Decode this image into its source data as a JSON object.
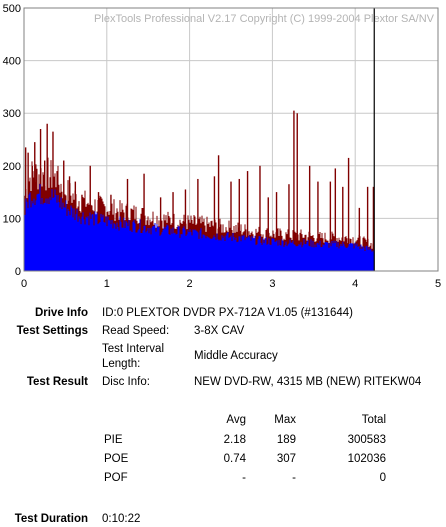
{
  "chart_data": {
    "type": "bar",
    "watermark": "PlexTools Professional V2.17 Copyright (C) 1999-2004 Plextor SA/NV",
    "x_ticks": [
      "0",
      "1",
      "2",
      "3",
      "4",
      "5"
    ],
    "y_ticks": [
      "0",
      "100",
      "200",
      "300",
      "400",
      "500"
    ],
    "xlim": [
      0,
      5
    ],
    "ylim": [
      0,
      500
    ],
    "end_marker_x": 4.23,
    "grid": true,
    "series": [
      {
        "color": "#0000ff",
        "values": [
          [
            0,
            110
          ],
          [
            0.05,
            140
          ],
          [
            0.1,
            150
          ],
          [
            0.2,
            150
          ],
          [
            0.3,
            150
          ],
          [
            0.4,
            140
          ],
          [
            0.5,
            125
          ],
          [
            0.6,
            115
          ],
          [
            0.7,
            108
          ],
          [
            0.8,
            105
          ],
          [
            0.9,
            100
          ],
          [
            1.0,
            98
          ],
          [
            1.2,
            92
          ],
          [
            1.4,
            88
          ],
          [
            1.6,
            82
          ],
          [
            1.8,
            78
          ],
          [
            2.0,
            75
          ],
          [
            2.2,
            72
          ],
          [
            2.4,
            68
          ],
          [
            2.6,
            65
          ],
          [
            2.8,
            60
          ],
          [
            3.0,
            58
          ],
          [
            3.2,
            55
          ],
          [
            3.4,
            55
          ],
          [
            3.6,
            52
          ],
          [
            3.8,
            52
          ],
          [
            4.0,
            50
          ],
          [
            4.23,
            40
          ]
        ]
      },
      {
        "color": "#800000",
        "spikes": [
          [
            0.02,
            235
          ],
          [
            0.05,
            225
          ],
          [
            0.1,
            200
          ],
          [
            0.13,
            245
          ],
          [
            0.2,
            270
          ],
          [
            0.25,
            210
          ],
          [
            0.28,
            280
          ],
          [
            0.35,
            265
          ],
          [
            0.4,
            190
          ],
          [
            0.48,
            210
          ],
          [
            0.55,
            180
          ],
          [
            0.62,
            170
          ],
          [
            0.7,
            145
          ],
          [
            0.8,
            200
          ],
          [
            0.9,
            150
          ],
          [
            1.05,
            145
          ],
          [
            1.25,
            175
          ],
          [
            1.45,
            185
          ],
          [
            1.65,
            140
          ],
          [
            1.8,
            150
          ],
          [
            1.95,
            155
          ],
          [
            2.1,
            175
          ],
          [
            2.3,
            180
          ],
          [
            2.35,
            220
          ],
          [
            2.5,
            170
          ],
          [
            2.6,
            175
          ],
          [
            2.7,
            190
          ],
          [
            2.85,
            200
          ],
          [
            2.95,
            140
          ],
          [
            3.05,
            150
          ],
          [
            3.2,
            165
          ],
          [
            3.26,
            305
          ],
          [
            3.3,
            300
          ],
          [
            3.45,
            200
          ],
          [
            3.55,
            170
          ],
          [
            3.7,
            170
          ],
          [
            3.76,
            195
          ],
          [
            3.85,
            160
          ],
          [
            3.92,
            215
          ],
          [
            4.05,
            120
          ],
          [
            4.15,
            160
          ],
          [
            4.22,
            160
          ]
        ]
      }
    ]
  },
  "info": {
    "drive_label": "Drive Info",
    "drive_value": "ID:0 PLEXTOR DVDR PX-712A V1.05 (#131644)",
    "settings_label": "Test Settings",
    "read_speed_label": "Read Speed:",
    "read_speed_value": "3-8X CAV",
    "interval_label_1": "Test Interval",
    "interval_label_2": "Length:",
    "interval_value": "Middle Accuracy",
    "result_label": "Test Result",
    "disc_label": "Disc Info:",
    "disc_value": "NEW DVD-RW, 4315 MB (NEW) RITEKW04",
    "col_avg": "Avg",
    "col_max": "Max",
    "col_total": "Total",
    "rows": [
      {
        "name": "PIE",
        "avg": "2.18",
        "max": "189",
        "total": "300583"
      },
      {
        "name": "POE",
        "avg": "0.74",
        "max": "307",
        "total": "102036"
      },
      {
        "name": "POF",
        "avg": "-",
        "max": "-",
        "total": "0"
      }
    ],
    "duration_label": "Test Duration",
    "duration_value": "0:10:22"
  }
}
